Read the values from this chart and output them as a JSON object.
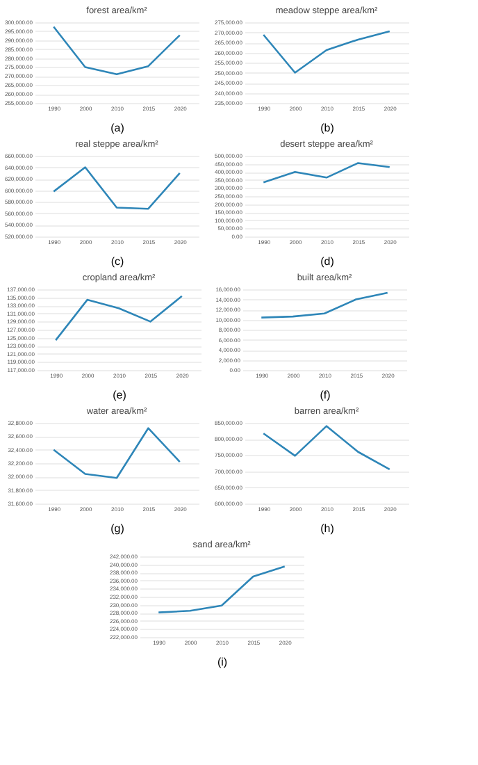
{
  "chart_data": [
    {
      "type": "line",
      "title": "forest area/km²",
      "categories": [
        "1990",
        "2000",
        "2010",
        "2015",
        "2020"
      ],
      "values": [
        297500,
        275000,
        271000,
        275500,
        292800
      ],
      "color": "#2e86b8",
      "ylim": [
        255000,
        300000
      ],
      "yticks": [
        {
          "value": 255000,
          "label": "255,000.00"
        },
        {
          "value": 260000,
          "label": "260,000.00"
        },
        {
          "value": 265000,
          "label": "265,000.00"
        },
        {
          "value": 270000,
          "label": "270,000.00"
        },
        {
          "value": 275000,
          "label": "275,000.00"
        },
        {
          "value": 280000,
          "label": "280,000.00"
        },
        {
          "value": 285000,
          "label": "285,000.00"
        },
        {
          "value": 290000,
          "label": "290,000.00"
        },
        {
          "value": 295000,
          "label": "295,000.00"
        },
        {
          "value": 300000,
          "label": "300,000.00"
        }
      ],
      "grid": "y",
      "annotations": [
        "(a)"
      ]
    },
    {
      "type": "line",
      "title": "meadow steppe area/km²",
      "categories": [
        "1990",
        "2000",
        "2010",
        "2015",
        "2020"
      ],
      "values": [
        268800,
        250000,
        261200,
        266400,
        270500
      ],
      "color": "#2e86b8",
      "ylim": [
        235000,
        275000
      ],
      "yticks": [
        {
          "value": 235000,
          "label": "235,000.00"
        },
        {
          "value": 240000,
          "label": "240,000.00"
        },
        {
          "value": 245000,
          "label": "245,000.00"
        },
        {
          "value": 250000,
          "label": "250,000.00"
        },
        {
          "value": 255000,
          "label": "255,000.00"
        },
        {
          "value": 260000,
          "label": "260,000.00"
        },
        {
          "value": 265000,
          "label": "265,000.00"
        },
        {
          "value": 270000,
          "label": "270,000.00"
        },
        {
          "value": 275000,
          "label": "275,000.00"
        }
      ],
      "grid": "y",
      "annotations": [
        "(b)"
      ]
    },
    {
      "type": "line",
      "title": "real steppe area/km²",
      "categories": [
        "1990",
        "2000",
        "2010",
        "2015",
        "2020"
      ],
      "values": [
        598000,
        640000,
        570000,
        568000,
        630000
      ],
      "color": "#2e86b8",
      "ylim": [
        520000,
        660000
      ],
      "yticks": [
        {
          "value": 520000,
          "label": "520,000.00"
        },
        {
          "value": 540000,
          "label": "540,000.00"
        },
        {
          "value": 560000,
          "label": "560,000.00"
        },
        {
          "value": 580000,
          "label": "580,000.00"
        },
        {
          "value": 600000,
          "label": "600,000.00"
        },
        {
          "value": 620000,
          "label": "620,000.00"
        },
        {
          "value": 640000,
          "label": "640,000.00"
        },
        {
          "value": 660000,
          "label": "660,000.00"
        }
      ],
      "grid": "y",
      "annotations": [
        "(c)"
      ]
    },
    {
      "type": "line",
      "title": "desert steppe area/km²",
      "categories": [
        "1990",
        "2000",
        "2010",
        "2015",
        "2020"
      ],
      "values": [
        335000,
        400000,
        365000,
        455000,
        430000
      ],
      "color": "#2e86b8",
      "ylim": [
        0,
        500000
      ],
      "yticks": [
        {
          "value": 0,
          "label": "0.00"
        },
        {
          "value": 50000,
          "label": "50,000.00"
        },
        {
          "value": 100000,
          "label": "100,000.00"
        },
        {
          "value": 150000,
          "label": "150,000.00"
        },
        {
          "value": 200000,
          "label": "200,000.00"
        },
        {
          "value": 250000,
          "label": "250,000.00"
        },
        {
          "value": 300000,
          "label": "300,000.00"
        },
        {
          "value": 350000,
          "label": "350,000.00"
        },
        {
          "value": 400000,
          "label": "400,000.00"
        },
        {
          "value": 450000,
          "label": "450,000.00"
        },
        {
          "value": 500000,
          "label": "500,000.00"
        }
      ],
      "grid": "y",
      "annotations": [
        "(d)"
      ]
    },
    {
      "type": "line",
      "title": "cropland area/km²",
      "categories": [
        "1990",
        "2000",
        "2010",
        "2015",
        "2020"
      ],
      "values": [
        124400,
        134400,
        132300,
        129000,
        135300
      ],
      "color": "#2e86b8",
      "ylim": [
        117000,
        137000
      ],
      "yticks": [
        {
          "value": 117000,
          "label": "117,000.00"
        },
        {
          "value": 119000,
          "label": "119,000.00"
        },
        {
          "value": 121000,
          "label": "121,000.00"
        },
        {
          "value": 123000,
          "label": "123,000.00"
        },
        {
          "value": 125000,
          "label": "125,000.00"
        },
        {
          "value": 127000,
          "label": "127,000.00"
        },
        {
          "value": 129000,
          "label": "129,000.00"
        },
        {
          "value": 131000,
          "label": "131,000.00"
        },
        {
          "value": 133000,
          "label": "133,000.00"
        },
        {
          "value": 135000,
          "label": "135,000.00"
        },
        {
          "value": 137000,
          "label": "137,000.00"
        }
      ],
      "grid": "y",
      "annotations": [
        "(e)"
      ]
    },
    {
      "type": "line",
      "title": "built area/km²",
      "categories": [
        "1990",
        "2000",
        "2010",
        "2015",
        "2020"
      ],
      "values": [
        10400,
        10600,
        11200,
        14000,
        15300
      ],
      "color": "#2e86b8",
      "ylim": [
        0,
        16000
      ],
      "yticks": [
        {
          "value": 0,
          "label": "0.00"
        },
        {
          "value": 2000,
          "label": "2,000.00"
        },
        {
          "value": 4000,
          "label": "4,000.00"
        },
        {
          "value": 6000,
          "label": "6,000.00"
        },
        {
          "value": 8000,
          "label": "8,000.00"
        },
        {
          "value": 10000,
          "label": "10,000.00"
        },
        {
          "value": 12000,
          "label": "12,000.00"
        },
        {
          "value": 14000,
          "label": "14,000.00"
        },
        {
          "value": 16000,
          "label": "16,000.00"
        }
      ],
      "grid": "y",
      "annotations": [
        "(f)"
      ]
    },
    {
      "type": "line",
      "title": "water area/km²",
      "categories": [
        "1990",
        "2000",
        "2010",
        "2015",
        "2020"
      ],
      "values": [
        32400,
        32040,
        31980,
        32720,
        32220
      ],
      "color": "#2e86b8",
      "ylim": [
        31600,
        32800
      ],
      "yticks": [
        {
          "value": 31600,
          "label": "31,600.00"
        },
        {
          "value": 31800,
          "label": "31,800.00"
        },
        {
          "value": 32000,
          "label": "32,000.00"
        },
        {
          "value": 32200,
          "label": "32,200.00"
        },
        {
          "value": 32400,
          "label": "32,400.00"
        },
        {
          "value": 32600,
          "label": "32,600.00"
        },
        {
          "value": 32800,
          "label": "32,800.00"
        }
      ],
      "grid": "y",
      "annotations": [
        "(g)"
      ]
    },
    {
      "type": "line",
      "title": "barren area/km²",
      "categories": [
        "1990",
        "2000",
        "2010",
        "2015",
        "2020"
      ],
      "values": [
        817000,
        748000,
        840000,
        760000,
        706000
      ],
      "color": "#2e86b8",
      "ylim": [
        600000,
        850000
      ],
      "yticks": [
        {
          "value": 600000,
          "label": "600,000.00"
        },
        {
          "value": 650000,
          "label": "650,000.00"
        },
        {
          "value": 700000,
          "label": "700,000.00"
        },
        {
          "value": 750000,
          "label": "750,000.00"
        },
        {
          "value": 800000,
          "label": "800,000.00"
        },
        {
          "value": 850000,
          "label": "850,000.00"
        }
      ],
      "grid": "y",
      "annotations": [
        "(h)"
      ]
    },
    {
      "type": "line",
      "title": "sand area/km²",
      "categories": [
        "1990",
        "2000",
        "2010",
        "2015",
        "2020"
      ],
      "values": [
        228100,
        228500,
        229800,
        237000,
        239500
      ],
      "color": "#2e86b8",
      "ylim": [
        222000,
        242000
      ],
      "yticks": [
        {
          "value": 222000,
          "label": "222,000.00"
        },
        {
          "value": 224000,
          "label": "224,000.00"
        },
        {
          "value": 226000,
          "label": "226,000.00"
        },
        {
          "value": 228000,
          "label": "228,000.00"
        },
        {
          "value": 230000,
          "label": "230,000.00"
        },
        {
          "value": 232000,
          "label": "232,000.00"
        },
        {
          "value": 234000,
          "label": "234,000.00"
        },
        {
          "value": 236000,
          "label": "236,000.00"
        },
        {
          "value": 238000,
          "label": "238,000.00"
        },
        {
          "value": 240000,
          "label": "240,000.00"
        },
        {
          "value": 242000,
          "label": "242,000.00"
        }
      ],
      "grid": "y",
      "annotations": [
        "(i)"
      ]
    }
  ]
}
